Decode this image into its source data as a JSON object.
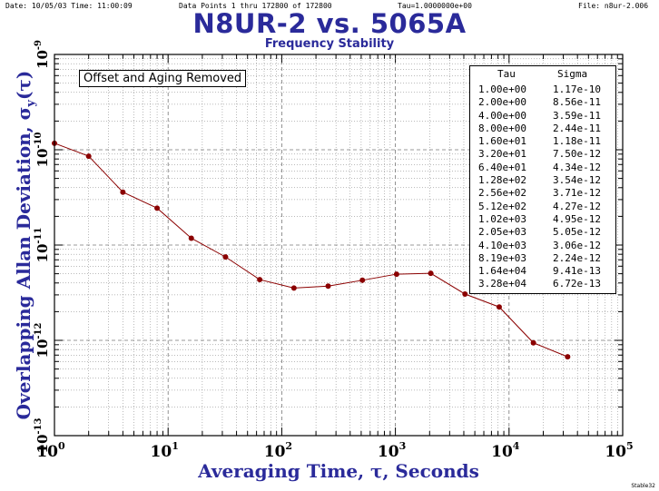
{
  "header": {
    "date": "Date: 10/05/03 Time: 11:00:09",
    "points": "Data Points 1 thru 172800 of 172800",
    "tau": "Tau=1.0000000e+00",
    "file": "File: n8ur-2.006"
  },
  "footer_note": "Stable32",
  "annotation": "Offset and Aging Removed",
  "table": {
    "col_tau": "Tau",
    "col_sigma": "Sigma",
    "rows": [
      [
        "1.00e+00",
        "1.17e-10"
      ],
      [
        "2.00e+00",
        "8.56e-11"
      ],
      [
        "4.00e+00",
        "3.59e-11"
      ],
      [
        "8.00e+00",
        "2.44e-11"
      ],
      [
        "1.60e+01",
        "1.18e-11"
      ],
      [
        "3.20e+01",
        "7.50e-12"
      ],
      [
        "6.40e+01",
        "4.34e-12"
      ],
      [
        "1.28e+02",
        "3.54e-12"
      ],
      [
        "2.56e+02",
        "3.71e-12"
      ],
      [
        "5.12e+02",
        "4.27e-12"
      ],
      [
        "1.02e+03",
        "4.95e-12"
      ],
      [
        "2.05e+03",
        "5.05e-12"
      ],
      [
        "4.10e+03",
        "3.06e-12"
      ],
      [
        "8.19e+03",
        "2.24e-12"
      ],
      [
        "1.64e+04",
        "9.41e-13"
      ],
      [
        "3.28e+04",
        "6.72e-13"
      ]
    ]
  },
  "colors": {
    "title": "#2a2a9a",
    "series": "#8b0000",
    "grid": "#777777"
  },
  "chart_data": {
    "type": "line",
    "title": "N8UR-2 vs. 5065A",
    "subtitle": "Frequency Stability",
    "xlabel": "Averaging Time, τ, Seconds",
    "ylabel": "Overlapping Allan Deviation, σy(τ)",
    "xscale": "log",
    "yscale": "log",
    "xlim": [
      1,
      100000
    ],
    "ylim": [
      1e-13,
      1e-09
    ],
    "grid": true,
    "x_ticks": [
      {
        "base": "10",
        "exp": "0"
      },
      {
        "base": "10",
        "exp": "1"
      },
      {
        "base": "10",
        "exp": "2"
      },
      {
        "base": "10",
        "exp": "3"
      },
      {
        "base": "10",
        "exp": "4"
      },
      {
        "base": "10",
        "exp": "5"
      }
    ],
    "y_ticks": [
      {
        "base": "10",
        "exp": "-13"
      },
      {
        "base": "10",
        "exp": "-12"
      },
      {
        "base": "10",
        "exp": "-11"
      },
      {
        "base": "10",
        "exp": "-10"
      },
      {
        "base": "10",
        "exp": "-9"
      }
    ],
    "series": [
      {
        "x": [
          1,
          2,
          4,
          8,
          16,
          32,
          64,
          128,
          256,
          512,
          1024,
          2048,
          4096,
          8192,
          16384,
          32768
        ],
        "y": [
          1.17e-10,
          8.56e-11,
          3.59e-11,
          2.44e-11,
          1.18e-11,
          7.5e-12,
          4.34e-12,
          3.54e-12,
          3.71e-12,
          4.27e-12,
          4.95e-12,
          5.05e-12,
          3.06e-12,
          2.24e-12,
          9.41e-13,
          6.72e-13
        ]
      }
    ]
  }
}
